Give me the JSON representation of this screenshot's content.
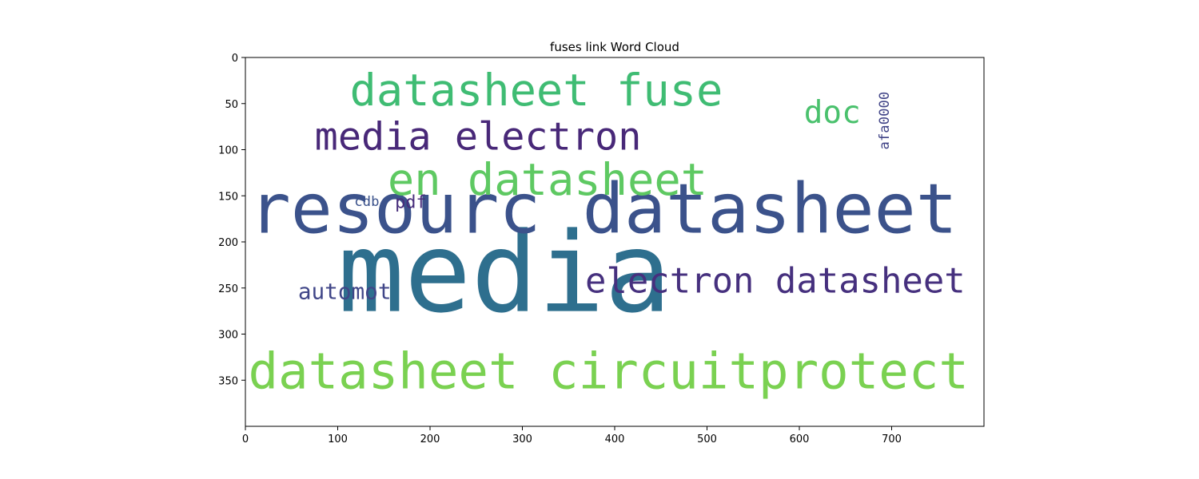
{
  "chart_data": {
    "type": "wordcloud",
    "title": "fuses link Word Cloud",
    "xlabel": "",
    "ylabel": "",
    "xlim": [
      0,
      800
    ],
    "ylim": [
      400,
      0
    ],
    "x_ticks": [
      0,
      100,
      200,
      300,
      400,
      500,
      600,
      700
    ],
    "y_ticks": [
      0,
      50,
      100,
      150,
      200,
      250,
      300,
      350
    ],
    "grid": false,
    "words": [
      {
        "text": "media",
        "x": 100,
        "y": 275,
        "size": 120,
        "color": "#2e6f8e",
        "rotate": 0
      },
      {
        "text": "resourc datasheet",
        "x": 4,
        "y": 190,
        "size": 75,
        "color": "#3b528b",
        "rotate": 0
      },
      {
        "text": "datasheet circuitprotect",
        "x": 3,
        "y": 359,
        "size": 54,
        "color": "#7ad151",
        "rotate": 0
      },
      {
        "text": "datasheet fuse",
        "x": 113,
        "y": 52,
        "size": 48,
        "color": "#3fbc73",
        "rotate": 0
      },
      {
        "text": "media electron",
        "x": 75,
        "y": 100,
        "size": 42,
        "color": "#482878",
        "rotate": 0
      },
      {
        "text": "en datasheet",
        "x": 154,
        "y": 149,
        "size": 48,
        "color": "#5ec962",
        "rotate": 0
      },
      {
        "text": "electron datasheet",
        "x": 368,
        "y": 255,
        "size": 38,
        "color": "#46307e",
        "rotate": 0
      },
      {
        "text": "doc",
        "x": 605,
        "y": 71,
        "size": 34,
        "color": "#4ac16d",
        "rotate": 0
      },
      {
        "text": "automot",
        "x": 57,
        "y": 262,
        "size": 24,
        "color": "#404688",
        "rotate": 0
      },
      {
        "text": "afa0000",
        "x": 697,
        "y": 100,
        "size": 15,
        "color": "#414487",
        "rotate": -90
      },
      {
        "text": "pdf",
        "x": 162,
        "y": 163,
        "size": 19,
        "color": "#472d7b",
        "rotate": 0
      },
      {
        "text": "cdb",
        "x": 118,
        "y": 161,
        "size": 15,
        "color": "#3b528b",
        "rotate": 0
      }
    ]
  }
}
